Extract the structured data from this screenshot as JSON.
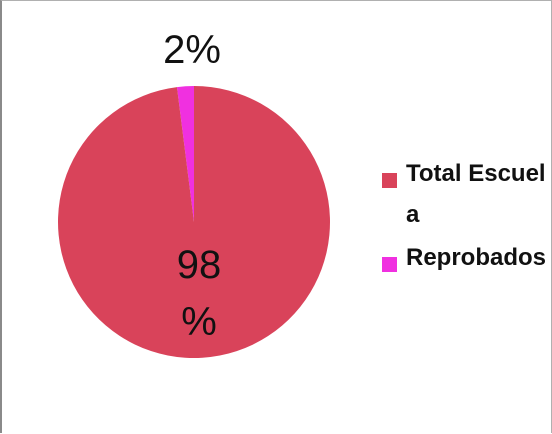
{
  "chart_data": {
    "type": "pie",
    "title": "",
    "slices": [
      {
        "label": "Total Escuela",
        "value": 98,
        "display": "98 %",
        "color": "#d9435a"
      },
      {
        "label": "Reprobados",
        "value": 2,
        "display": "2%",
        "color": "#f030e0"
      }
    ],
    "legend_position": "right",
    "data_labels": {
      "total": "98 %",
      "reprobados": "2%"
    }
  },
  "legend": {
    "items": [
      {
        "label": "Total Escuela",
        "color": "#d9435a"
      },
      {
        "label": "Reprobados",
        "color": "#f030e0"
      }
    ]
  }
}
